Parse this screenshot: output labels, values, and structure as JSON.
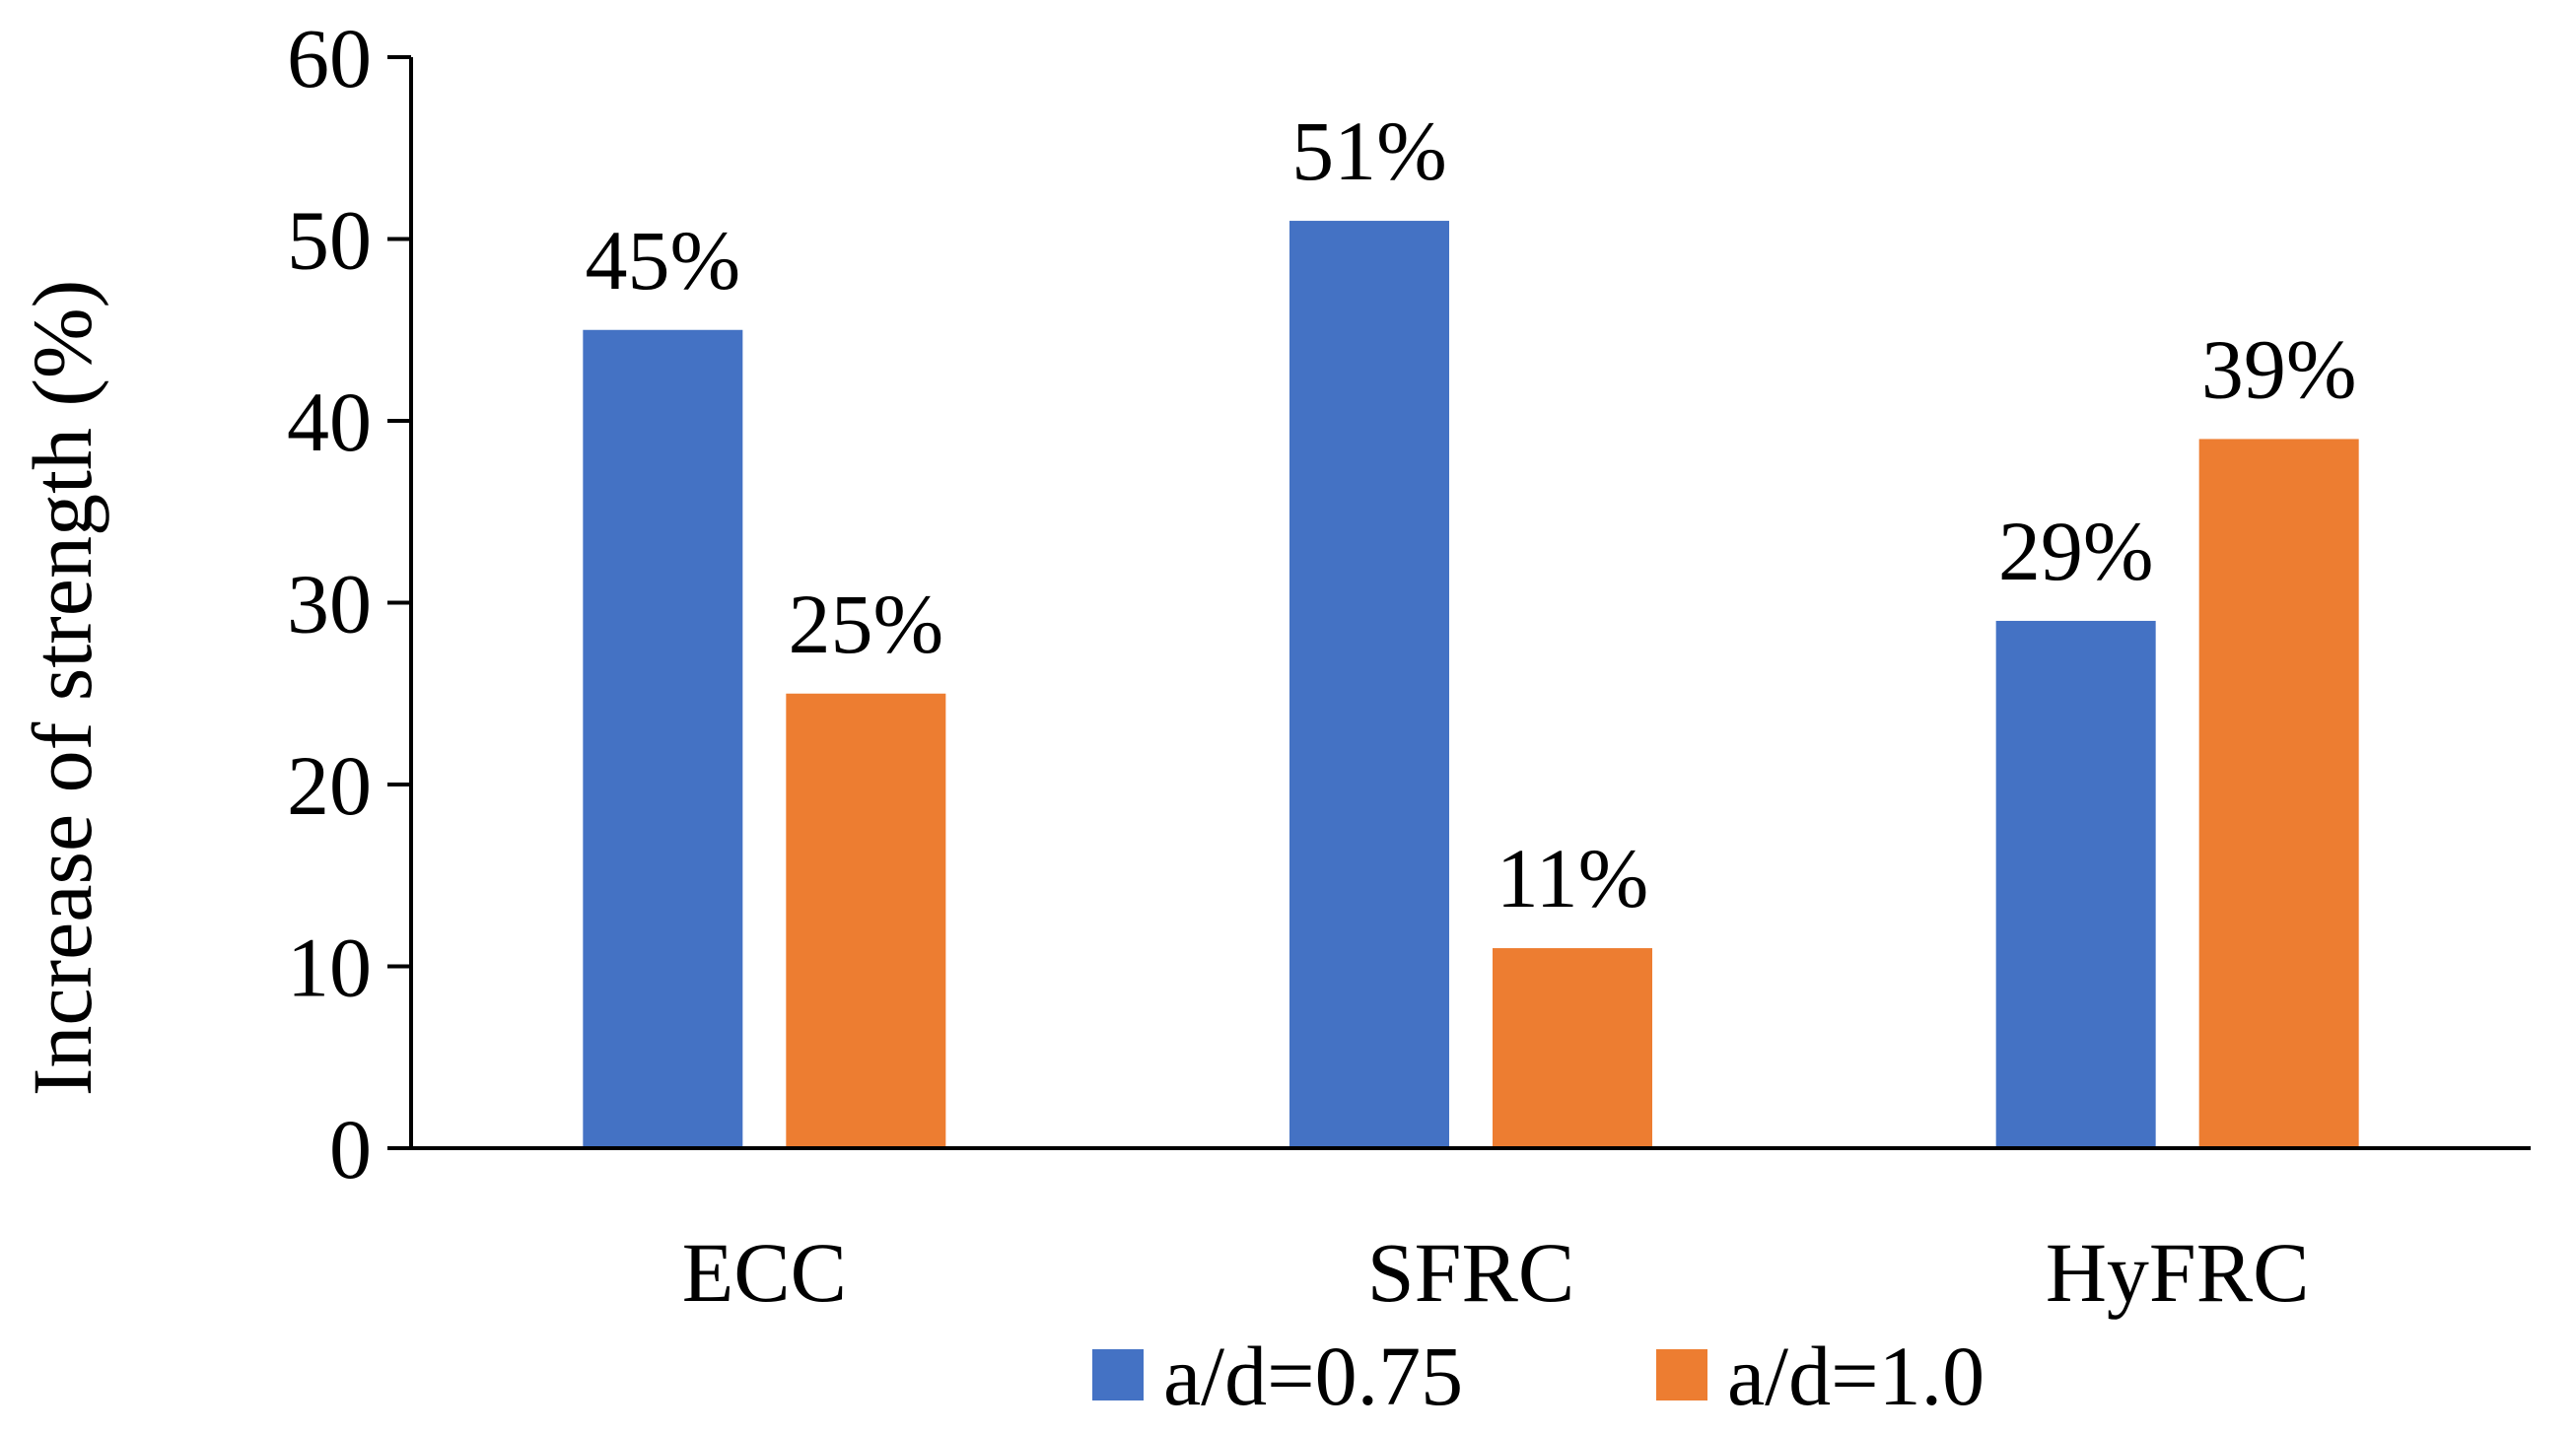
{
  "chart_data": {
    "type": "bar",
    "title": "",
    "xlabel": "",
    "ylabel": "Increase of strength (%)",
    "ylim": [
      0,
      60
    ],
    "yticks": [
      0,
      10,
      20,
      30,
      40,
      50,
      60
    ],
    "categories": [
      "ECC",
      "SFRC",
      "HyFRC"
    ],
    "series": [
      {
        "name": "a/d=0.75",
        "color": "#4472C4",
        "values": [
          45,
          51,
          29
        ],
        "labels": [
          "45%",
          "51%",
          "29%"
        ]
      },
      {
        "name": "a/d=1.0",
        "color": "#ED7D31",
        "values": [
          25,
          11,
          39
        ],
        "labels": [
          "25%",
          "11%",
          "39%"
        ]
      }
    ],
    "grid": false,
    "legend_position": "bottom"
  }
}
